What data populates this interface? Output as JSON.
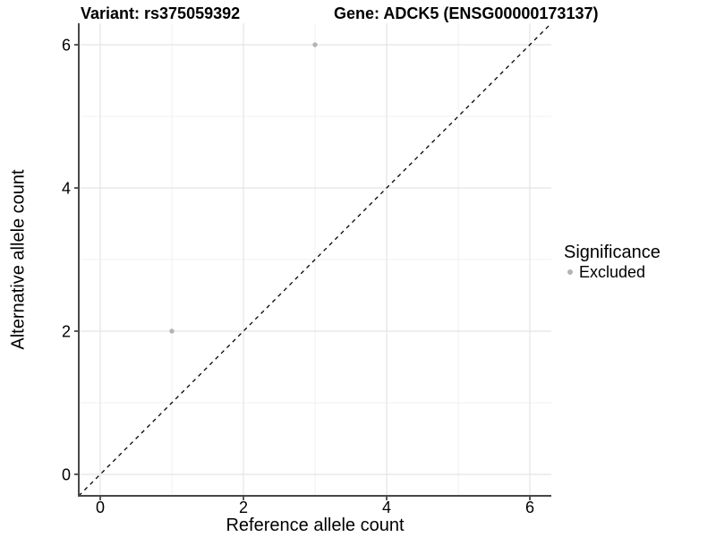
{
  "chart_data": {
    "type": "scatter",
    "titles": {
      "left": "Variant: rs375059392",
      "right": "Gene: ADCK5 (ENSG00000173137)"
    },
    "xlabel": "Reference allele count",
    "ylabel": "Alternative allele count",
    "xlim": [
      -0.3,
      6.3
    ],
    "ylim": [
      -0.3,
      6.3
    ],
    "x_ticks": [
      0,
      2,
      4,
      6
    ],
    "y_ticks": [
      0,
      2,
      4,
      6
    ],
    "x_minor_ticks": [
      1,
      3,
      5
    ],
    "y_minor_ticks": [
      1,
      3,
      5
    ],
    "grid": "on",
    "series": [
      {
        "name": "Excluded",
        "color": "#b4b4b4",
        "points": [
          [
            3,
            6
          ],
          [
            1,
            2
          ]
        ]
      }
    ],
    "reference_line": {
      "shape": "identity y = x",
      "style": "dashed",
      "color": "#000000",
      "from": [
        -0.3,
        -0.3
      ],
      "to": [
        6.3,
        6.3
      ]
    },
    "legend": {
      "title": "Significance",
      "position": "right",
      "items": [
        {
          "label": "Excluded",
          "color": "#b4b4b4"
        }
      ]
    }
  },
  "colors": {
    "background": "#ffffff",
    "major_gridline": "#e4e4e4",
    "minor_gridline": "#f1f1f1",
    "axis_line": "#484848",
    "text": "#000000"
  }
}
